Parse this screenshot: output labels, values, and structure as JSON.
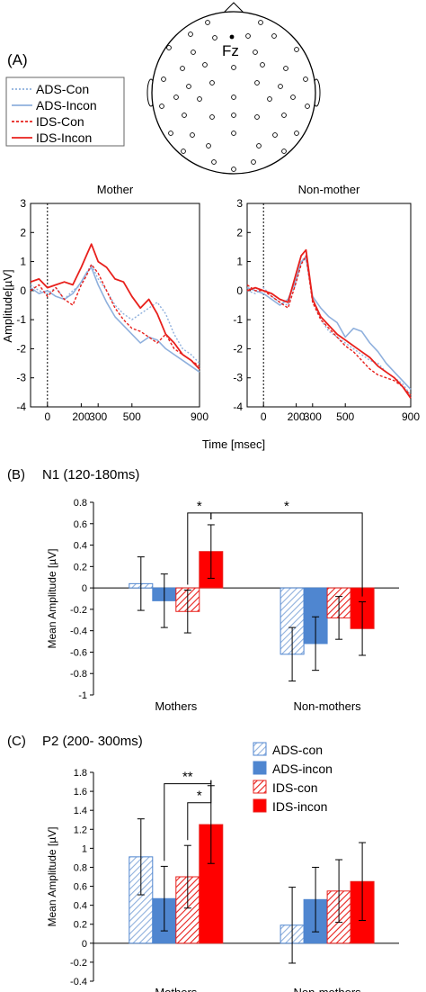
{
  "panel_a": {
    "label": "(A)",
    "head": {
      "electrode": "Fz"
    },
    "legend": [
      {
        "name": "ADS-Con",
        "color": "#8fb0dd",
        "dash": "2,2"
      },
      {
        "name": "ADS-Incon",
        "color": "#8fb0dd",
        "dash": ""
      },
      {
        "name": "IDS-Con",
        "color": "#e8201c",
        "dash": "3,2"
      },
      {
        "name": "IDS-Incon",
        "color": "#e8201c",
        "dash": ""
      }
    ],
    "xlabel": "Time [msec]",
    "ylabel": "Amplitude[µV]"
  },
  "panel_b": {
    "label": "(B)",
    "title": "N1 (120-180ms)"
  },
  "panel_c": {
    "label": "(C)",
    "title": "P2 (200- 300ms)"
  },
  "chart_data": [
    {
      "type": "line",
      "title": "Mother",
      "ylim": [
        -4,
        3
      ],
      "yticks": [
        "3",
        "2",
        "1",
        "0",
        "-1",
        "-2",
        "-3",
        "-4"
      ],
      "xticks": [
        {
          "v": 0,
          "label": "0"
        },
        {
          "v": 200,
          "label": "200"
        },
        {
          "v": 300,
          "label": "300"
        },
        {
          "v": 500,
          "label": "500"
        },
        {
          "v": 900,
          "label": "900"
        }
      ],
      "xlim": [
        -100,
        900
      ],
      "series": [
        {
          "name": "ADS-Con",
          "x": [
            -100,
            -50,
            0,
            50,
            100,
            150,
            200,
            230,
            260,
            300,
            350,
            400,
            450,
            500,
            550,
            600,
            650,
            700,
            750,
            800,
            850,
            900
          ],
          "y": [
            0.2,
            0.0,
            -0.1,
            0.1,
            -0.3,
            0.0,
            0.2,
            0.6,
            0.9,
            0.4,
            0.0,
            -0.5,
            -0.8,
            -1.0,
            -0.8,
            -0.6,
            -0.4,
            -0.8,
            -1.5,
            -2.0,
            -2.2,
            -2.5
          ]
        },
        {
          "name": "ADS-Incon",
          "x": [
            -100,
            -50,
            0,
            50,
            100,
            150,
            200,
            230,
            260,
            300,
            350,
            400,
            450,
            500,
            550,
            600,
            650,
            700,
            750,
            800,
            850,
            900
          ],
          "y": [
            0.1,
            -0.1,
            0.0,
            -0.2,
            -0.3,
            -0.1,
            0.3,
            0.6,
            0.8,
            0.2,
            -0.4,
            -0.9,
            -1.2,
            -1.5,
            -1.8,
            -1.6,
            -1.7,
            -2.0,
            -2.2,
            -2.4,
            -2.6,
            -2.8
          ]
        },
        {
          "name": "IDS-Con",
          "x": [
            -100,
            -50,
            0,
            50,
            100,
            150,
            200,
            230,
            260,
            300,
            350,
            400,
            450,
            500,
            550,
            600,
            650,
            700,
            750,
            800,
            850,
            900
          ],
          "y": [
            0.0,
            0.2,
            -0.2,
            0.1,
            -0.3,
            -0.5,
            0.2,
            0.5,
            0.9,
            0.6,
            0.0,
            -0.6,
            -1.0,
            -1.3,
            -1.4,
            -1.6,
            -1.8,
            -1.5,
            -2.0,
            -2.2,
            -2.4,
            -2.6
          ]
        },
        {
          "name": "IDS-Incon",
          "x": [
            -100,
            -50,
            0,
            50,
            100,
            150,
            200,
            230,
            260,
            300,
            350,
            400,
            450,
            500,
            550,
            600,
            650,
            700,
            750,
            800,
            850,
            900
          ],
          "y": [
            0.3,
            0.4,
            0.1,
            0.2,
            0.3,
            0.2,
            0.8,
            1.2,
            1.6,
            1.0,
            0.8,
            0.4,
            0.3,
            -0.2,
            -0.6,
            -0.3,
            -0.8,
            -1.5,
            -1.8,
            -2.2,
            -2.4,
            -2.7
          ]
        }
      ]
    },
    {
      "type": "line",
      "title": "Non-mother",
      "ylim": [
        -4,
        3
      ],
      "yticks": [
        "3",
        "2",
        "1",
        "0",
        "-1",
        "-2",
        "-3",
        "-4"
      ],
      "xticks": [
        {
          "v": 0,
          "label": "0"
        },
        {
          "v": 200,
          "label": "200"
        },
        {
          "v": 300,
          "label": "300"
        },
        {
          "v": 500,
          "label": "500"
        },
        {
          "v": 900,
          "label": "900"
        }
      ],
      "xlim": [
        -100,
        900
      ],
      "series": [
        {
          "name": "ADS-Con",
          "x": [
            -100,
            -50,
            0,
            50,
            100,
            150,
            200,
            230,
            260,
            300,
            350,
            400,
            450,
            500,
            550,
            600,
            650,
            700,
            750,
            800,
            850,
            900
          ],
          "y": [
            0.0,
            -0.1,
            0.1,
            -0.2,
            -0.4,
            -0.5,
            0.3,
            1.0,
            1.2,
            -0.3,
            -1.0,
            -1.4,
            -1.6,
            -1.8,
            -2.0,
            -2.2,
            -2.4,
            -2.5,
            -2.8,
            -3.0,
            -3.2,
            -3.6
          ]
        },
        {
          "name": "ADS-Incon",
          "x": [
            -100,
            -50,
            0,
            50,
            100,
            150,
            200,
            230,
            260,
            300,
            350,
            400,
            450,
            500,
            550,
            600,
            650,
            700,
            750,
            800,
            850,
            900
          ],
          "y": [
            0.1,
            0.0,
            -0.1,
            -0.3,
            -0.5,
            -0.3,
            0.4,
            1.0,
            1.1,
            -0.2,
            -0.6,
            -0.9,
            -1.1,
            -1.6,
            -1.3,
            -1.4,
            -1.8,
            -2.1,
            -2.5,
            -2.8,
            -3.1,
            -3.4
          ]
        },
        {
          "name": "IDS-Con",
          "x": [
            -100,
            -50,
            0,
            50,
            100,
            150,
            200,
            230,
            260,
            300,
            350,
            400,
            450,
            500,
            550,
            600,
            650,
            700,
            750,
            800,
            850,
            900
          ],
          "y": [
            0.2,
            0.0,
            0.0,
            -0.2,
            -0.4,
            -0.6,
            0.3,
            0.9,
            1.2,
            -0.4,
            -1.0,
            -1.3,
            -1.6,
            -1.9,
            -2.1,
            -2.4,
            -2.7,
            -2.9,
            -3.0,
            -3.1,
            -3.3,
            -3.6
          ]
        },
        {
          "name": "IDS-Incon",
          "x": [
            -100,
            -50,
            0,
            50,
            100,
            150,
            200,
            230,
            260,
            300,
            350,
            400,
            450,
            500,
            550,
            600,
            650,
            700,
            750,
            800,
            850,
            900
          ],
          "y": [
            0.0,
            0.1,
            0.0,
            -0.1,
            -0.3,
            -0.4,
            0.6,
            1.2,
            1.4,
            -0.3,
            -0.9,
            -1.2,
            -1.5,
            -1.7,
            -1.9,
            -2.1,
            -2.3,
            -2.6,
            -2.8,
            -3.0,
            -3.3,
            -3.7
          ]
        }
      ]
    },
    {
      "type": "bar",
      "ylabel": "Mean Amplitude [µV]",
      "ylim": [
        -1,
        0.8
      ],
      "yticks": [
        {
          "v": 0.8,
          "label": "0.8"
        },
        {
          "v": 0.6,
          "label": "0.6"
        },
        {
          "v": 0.4,
          "label": "0.4"
        },
        {
          "v": 0.2,
          "label": "0.2"
        },
        {
          "v": 0,
          "label": "0"
        },
        {
          "v": -0.2,
          "label": "-0.2"
        },
        {
          "v": -0.4,
          "label": "-0.4"
        },
        {
          "v": -0.6,
          "label": "-0.6"
        },
        {
          "v": -0.8,
          "label": "-0.8"
        },
        {
          "v": -1,
          "label": "-1"
        }
      ],
      "categories": [
        "Mothers",
        "Non-mothers"
      ],
      "series": [
        {
          "name": "ADS-con",
          "values": [
            0.04,
            -0.62
          ],
          "errors": [
            0.25,
            0.25
          ]
        },
        {
          "name": "ADS-incon",
          "values": [
            -0.12,
            -0.52
          ],
          "errors": [
            0.25,
            0.25
          ]
        },
        {
          "name": "IDS-con",
          "values": [
            -0.22,
            -0.28
          ],
          "errors": [
            0.2,
            0.2
          ]
        },
        {
          "name": "IDS-incon",
          "values": [
            0.34,
            -0.38
          ],
          "errors": [
            0.25,
            0.25
          ]
        }
      ],
      "significance": [
        {
          "label": "*",
          "from": [
            0,
            2
          ],
          "to": [
            0,
            3
          ],
          "level": 0.7
        },
        {
          "label": "*",
          "from": [
            0,
            3
          ],
          "to": [
            1,
            3
          ],
          "level": 0.7
        }
      ]
    },
    {
      "type": "bar",
      "ylabel": "Mean Amplitude [µV]",
      "ylim": [
        -0.4,
        1.8
      ],
      "yticks": [
        {
          "v": 1.8,
          "label": "1.8"
        },
        {
          "v": 1.6,
          "label": "1.6"
        },
        {
          "v": 1.4,
          "label": "1.4"
        },
        {
          "v": 1.2,
          "label": "1.2"
        },
        {
          "v": 1.0,
          "label": "1"
        },
        {
          "v": 0.8,
          "label": "0.8"
        },
        {
          "v": 0.6,
          "label": "0.6"
        },
        {
          "v": 0.4,
          "label": "0.4"
        },
        {
          "v": 0.2,
          "label": "0.2"
        },
        {
          "v": 0,
          "label": "0"
        },
        {
          "v": -0.2,
          "label": "-0.2"
        },
        {
          "v": -0.4,
          "label": "-0.4"
        }
      ],
      "categories": [
        "Mothers",
        "Non-mothers"
      ],
      "legend": [
        {
          "name": "ADS-con"
        },
        {
          "name": "ADS-incon"
        },
        {
          "name": "IDS-con"
        },
        {
          "name": "IDS-incon"
        }
      ],
      "series": [
        {
          "name": "ADS-con",
          "values": [
            0.91,
            0.19
          ],
          "errors": [
            0.4,
            0.4
          ]
        },
        {
          "name": "ADS-incon",
          "values": [
            0.47,
            0.46
          ],
          "errors": [
            0.34,
            0.34
          ]
        },
        {
          "name": "IDS-con",
          "values": [
            0.7,
            0.55
          ],
          "errors": [
            0.33,
            0.33
          ]
        },
        {
          "name": "IDS-incon",
          "values": [
            1.25,
            0.65
          ],
          "errors": [
            0.41,
            0.41
          ]
        }
      ],
      "significance": [
        {
          "label": "**",
          "from": [
            0,
            1
          ],
          "to": [
            0,
            3
          ],
          "level": 1.68
        },
        {
          "label": "*",
          "from": [
            0,
            2
          ],
          "to": [
            0,
            3
          ],
          "level": 1.48
        }
      ]
    }
  ]
}
